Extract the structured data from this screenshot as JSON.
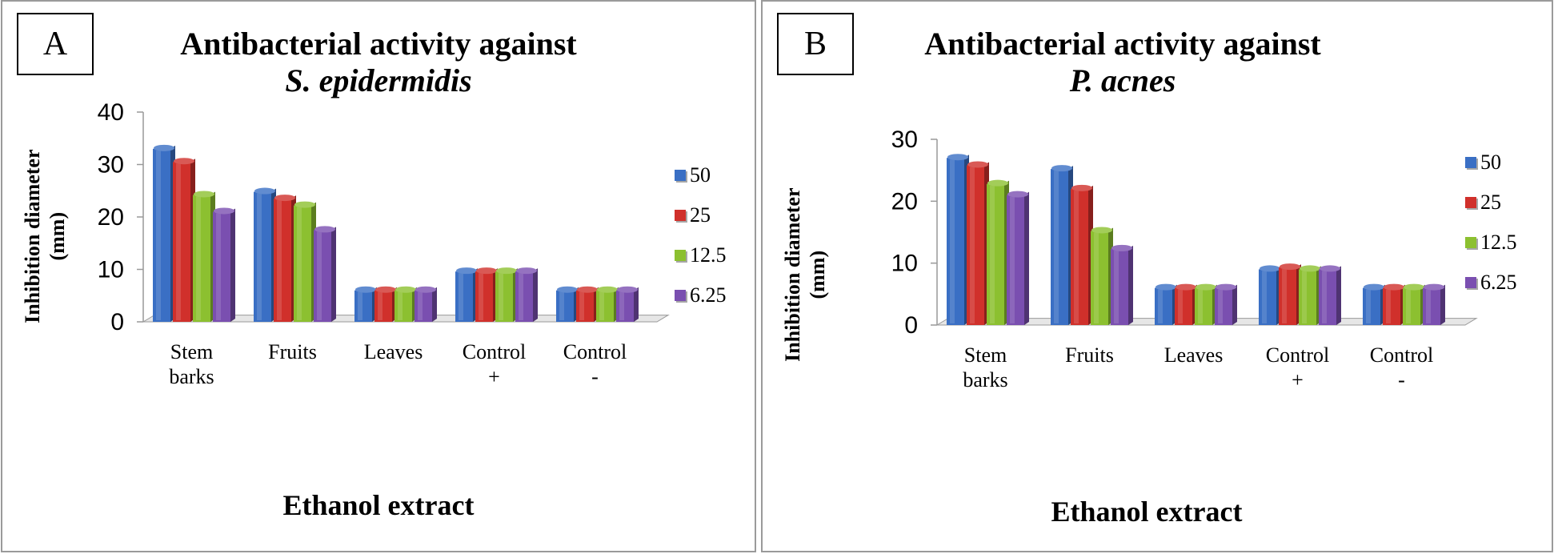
{
  "chart_data": [
    {
      "type": "bar",
      "panel_label": "A",
      "title": "Antibacterial activity against",
      "subtitle": "S. epidermidis",
      "xlabel": "Ethanol extract",
      "ylabel_line1": "Inhibition diameter",
      "ylabel_line2": "(mm)",
      "ylim": [
        0,
        40
      ],
      "yticks": [
        "0",
        "10",
        "20",
        "30",
        "40"
      ],
      "categories": [
        {
          "line1": "Stem",
          "line2": "barks"
        },
        {
          "line1": "Fruits",
          "line2": ""
        },
        {
          "line1": "Leaves",
          "line2": ""
        },
        {
          "line1": "Control",
          "line2": "+"
        },
        {
          "line1": "Control",
          "line2": "-"
        }
      ],
      "series": [
        {
          "name": "50",
          "color": "#3a6fc4",
          "values": [
            33,
            24.8,
            6,
            9.6,
            6
          ]
        },
        {
          "name": "25",
          "color": "#d0302b",
          "values": [
            30.5,
            23.5,
            6,
            9.6,
            6
          ]
        },
        {
          "name": "12.5",
          "color": "#8cc030",
          "values": [
            24.2,
            22.2,
            6,
            9.6,
            6
          ]
        },
        {
          "name": "6.25",
          "color": "#7a4fb0",
          "values": [
            21,
            17.5,
            6,
            9.6,
            6
          ]
        }
      ]
    },
    {
      "type": "bar",
      "panel_label": "B",
      "title": "Antibacterial activity against",
      "subtitle": "P. acnes",
      "xlabel": "Ethanol extract",
      "ylabel_line1": "Inhibition diameter",
      "ylabel_line2": "(mm)",
      "ylim": [
        0,
        30
      ],
      "yticks": [
        "0",
        "10",
        "20",
        "30"
      ],
      "categories": [
        {
          "line1": "Stem",
          "line2": "barks"
        },
        {
          "line1": "Fruits",
          "line2": ""
        },
        {
          "line1": "Leaves",
          "line2": ""
        },
        {
          "line1": "Control",
          "line2": "+"
        },
        {
          "line1": "Control",
          "line2": "-"
        }
      ],
      "series": [
        {
          "name": "50",
          "color": "#3a6fc4",
          "values": [
            27,
            25.2,
            6,
            9,
            6
          ]
        },
        {
          "name": "25",
          "color": "#d0302b",
          "values": [
            25.8,
            22,
            6,
            9.3,
            6
          ]
        },
        {
          "name": "12.5",
          "color": "#8cc030",
          "values": [
            22.8,
            15.2,
            6,
            9,
            6
          ]
        },
        {
          "name": "6.25",
          "color": "#7a4fb0",
          "values": [
            21,
            12.3,
            6,
            9,
            6
          ]
        }
      ]
    }
  ]
}
